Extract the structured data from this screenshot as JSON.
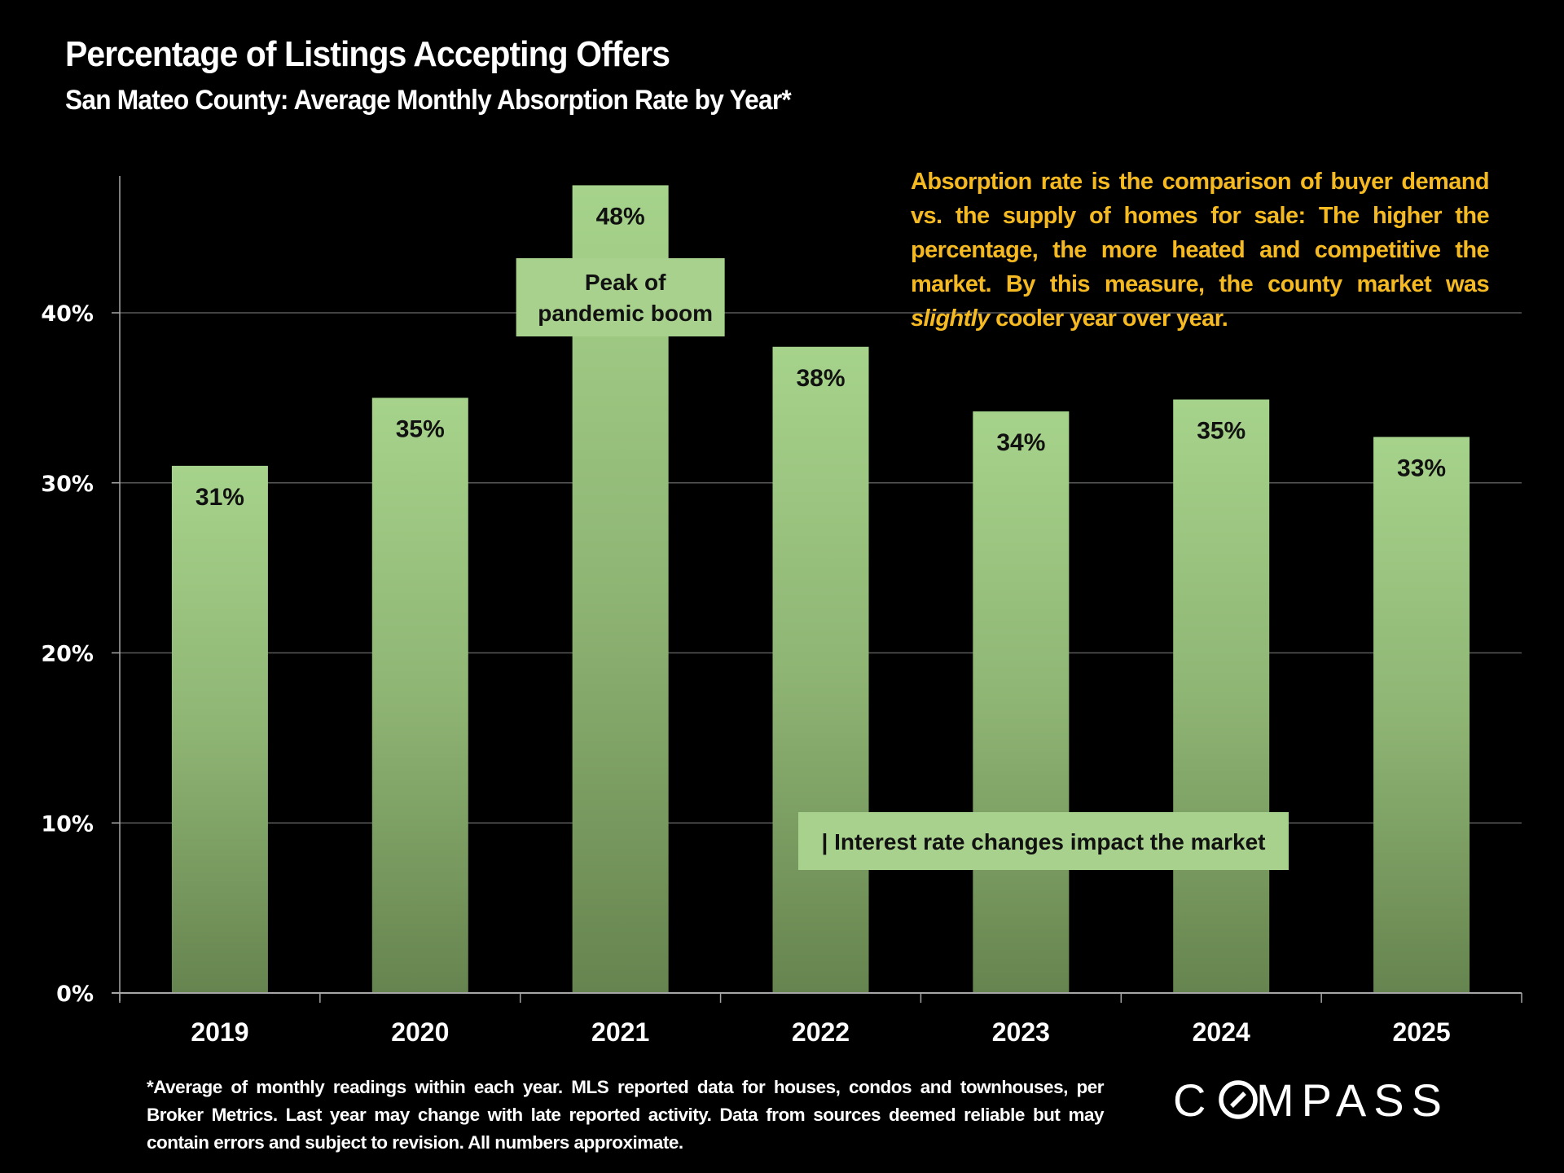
{
  "header": {
    "title": "Percentage of Listings Accepting Offers",
    "subtitle": "San Mateo County: Average Monthly Absorption Rate by Year*"
  },
  "note": {
    "before_italic": "Absorption rate is the comparison of buyer demand vs. the supply of homes for sale: The higher the percentage, the more heated and competitive the market. By this measure, the county market was ",
    "italic": "slightly",
    "after_italic": " cooler year over year.",
    "color": "#f5b921"
  },
  "footnote": "*Average of monthly readings within each year. MLS reported data for houses, condos and townhouses, per Broker Metrics.  Last year may change with late reported activity. Data from sources deemed reliable but may contain errors and subject to revision. All numbers approximate.",
  "logo": {
    "text": "COMPASS",
    "icon": "compass-logo-o-icon"
  },
  "chart_data": {
    "type": "bar",
    "title": "Percentage of Listings Accepting Offers",
    "subtitle": "San Mateo County: Average Monthly Absorption Rate by Year*",
    "xlabel": "",
    "ylabel": "",
    "categories": [
      "2019",
      "2020",
      "2021",
      "2022",
      "2023",
      "2024",
      "2025"
    ],
    "values": [
      31.0,
      35.0,
      47.5,
      38.0,
      34.2,
      34.9,
      32.7
    ],
    "data_labels": [
      "31%",
      "35%",
      "48%",
      "38%",
      "34%",
      "35%",
      "33%"
    ],
    "ylim": [
      0,
      48
    ],
    "yticks": [
      0,
      10,
      20,
      30,
      40
    ],
    "ytick_labels": [
      "0%",
      "10%",
      "20%",
      "30%",
      "40%"
    ],
    "grid": true,
    "legend": "none",
    "colors": {
      "bar_top": "#a6d38b",
      "bar_bottom": "#66844f",
      "annotation_fill": "#a9d18e",
      "grid": "#595959",
      "axis": "#a6a6a6"
    },
    "annotations": [
      {
        "text_lines": [
          "Peak of",
          "pandemic boom"
        ],
        "category": "2021"
      },
      {
        "text": "| Interest rate changes impact the market",
        "categories": [
          "2022",
          "2024"
        ]
      }
    ]
  }
}
